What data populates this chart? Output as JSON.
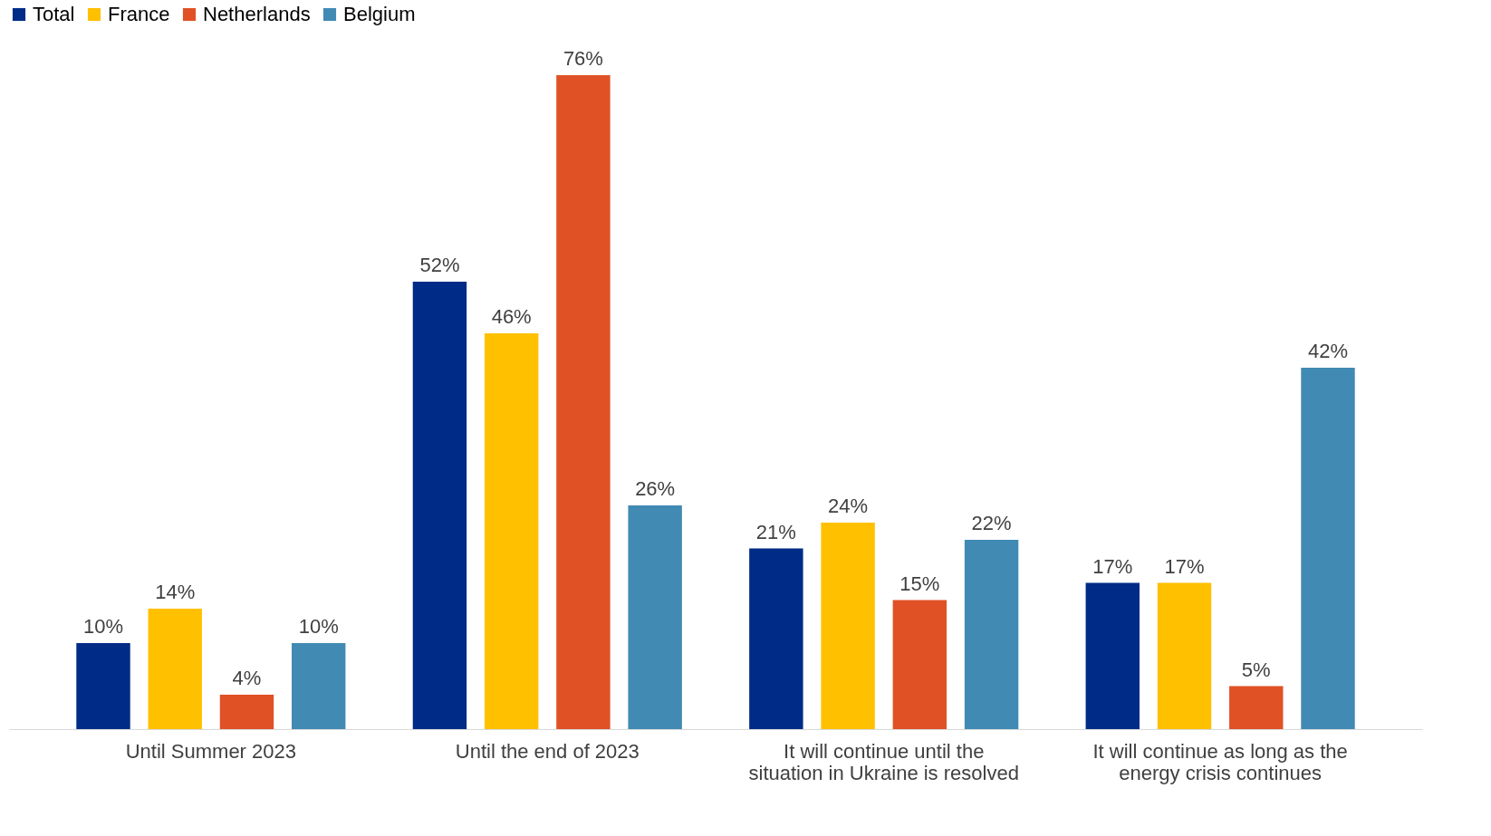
{
  "chart_data": {
    "type": "bar",
    "categories": [
      "Until Summer 2023",
      "Until the end of 2023",
      "It will continue until the situation in Ukraine is resolved",
      "It will continue as long as the energy crisis continues"
    ],
    "series": [
      {
        "name": "Total",
        "color": "#002b87",
        "values": [
          10,
          52,
          21,
          17
        ],
        "value_labels": [
          "10%",
          "52%",
          "21%",
          "17%"
        ]
      },
      {
        "name": "France",
        "color": "#ffc000",
        "values": [
          14,
          46,
          24,
          17
        ],
        "value_labels": [
          "14%",
          "46%",
          "24%",
          "17%"
        ]
      },
      {
        "name": "Netherlands",
        "color": "#e05126",
        "values": [
          4,
          76,
          15,
          5
        ],
        "value_labels": [
          "4%",
          "76%",
          "15%",
          "5%"
        ]
      },
      {
        "name": "Belgium",
        "color": "#418ab4",
        "values": [
          10,
          26,
          22,
          42
        ],
        "value_labels": [
          "10%",
          "26%",
          "22%",
          "42%"
        ]
      }
    ],
    "legend": "top",
    "grid": false,
    "tick_labels": "x"
  }
}
